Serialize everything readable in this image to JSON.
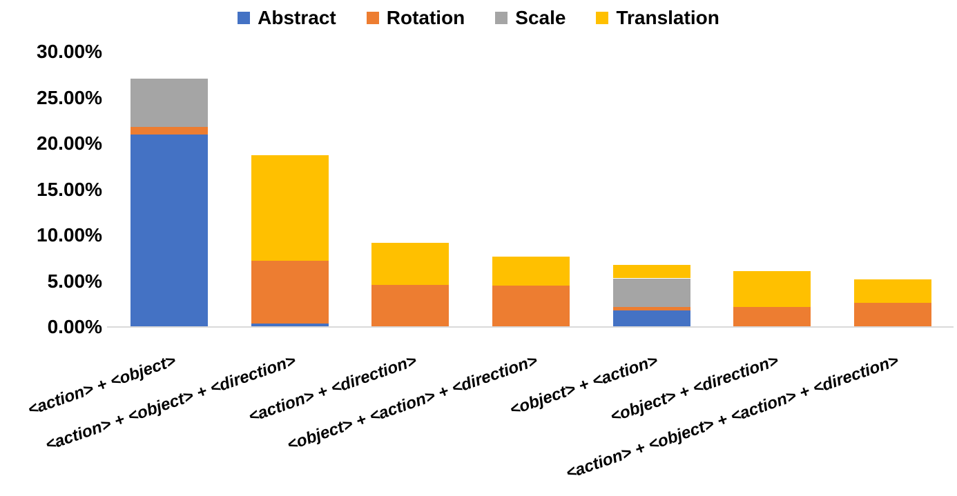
{
  "chart_data": {
    "type": "bar",
    "variant": "stacked-vertical",
    "title": "",
    "categories": [
      "<action> + <object>",
      "<action> + <object> + <direction>",
      "<action> + <direction>",
      "<object> + <action> + <direction>",
      "<object> + <action>",
      "<object> + <direction>",
      "<action> + <object> + <action> + <direction>"
    ],
    "series": [
      {
        "name": "Abstract",
        "color": "#4472C4",
        "values": [
          21.0,
          0.4,
          0.0,
          0.0,
          1.8,
          0.0,
          0.0
        ]
      },
      {
        "name": "Rotation",
        "color": "#ED7D31",
        "values": [
          0.8,
          6.8,
          4.6,
          4.5,
          0.4,
          2.2,
          2.6
        ]
      },
      {
        "name": "Scale",
        "color": "#A5A5A5",
        "values": [
          5.3,
          0.0,
          0.0,
          0.0,
          3.1,
          0.0,
          0.0
        ]
      },
      {
        "name": "Translation",
        "color": "#FFC000",
        "values": [
          0.0,
          11.5,
          4.6,
          3.2,
          1.5,
          3.9,
          2.6
        ]
      }
    ],
    "totals_percent": [
      27.1,
      18.7,
      9.2,
      7.7,
      6.8,
      6.1,
      5.2
    ],
    "y_axis": {
      "min": 0,
      "max": 30,
      "step": 5,
      "tick_labels": [
        "0.00%",
        "5.00%",
        "10.00%",
        "15.00%",
        "20.00%",
        "25.00%",
        "30.00%"
      ]
    },
    "x_axis": {
      "label_rotation_deg": -19,
      "label_style": "bold-italic"
    },
    "legend_position": "top-center",
    "grid": false,
    "colors": {
      "axis_line": "#D9D9D9",
      "text": "#000000",
      "background": "#FFFFFF"
    }
  }
}
